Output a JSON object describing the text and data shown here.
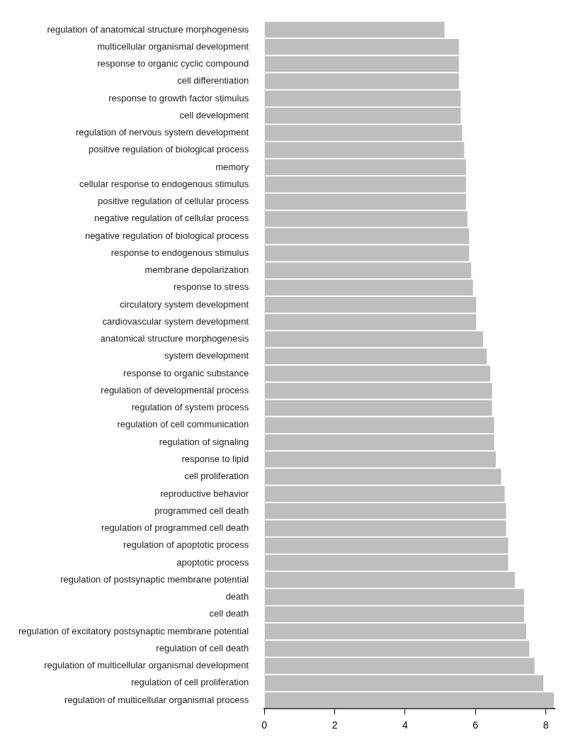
{
  "chart_data": {
    "type": "bar",
    "orientation": "horizontal",
    "color": "#bebebe",
    "categories": [
      "regulation of anatomical structure morphogenesis",
      "multicellular organismal development",
      "response to organic cyclic compound",
      "cell differentiation",
      "response to growth factor stimulus",
      "cell development",
      "regulation of nervous system development",
      "positive regulation of biological process",
      "memory",
      "cellular response to endogenous stimulus",
      "positive regulation of cellular process",
      "negative regulation of cellular process",
      "negative regulation of biological process",
      "response to endogenous stimulus",
      "membrane depolarization",
      "response to stress",
      "circulatory system development",
      "cardiovascular system development",
      "anatomical structure morphogenesis",
      "system development",
      "response to organic substance",
      "regulation of developmental process",
      "regulation of system process",
      "regulation of cell communication",
      "regulation of signaling",
      "response to lipid",
      "cell proliferation",
      "reproductive behavior",
      "programmed cell death",
      "regulation of programmed cell death",
      "regulation of apoptotic process",
      "apoptotic process",
      "regulation of postsynaptic membrane potential",
      "death",
      "cell death",
      "regulation of excitatory postsynaptic membrane potential",
      "regulation of cell death",
      "regulation of multicellular organismal development",
      "regulation of cell proliferation",
      "regulation of multicellular organismal process"
    ],
    "values": [
      5.12,
      5.53,
      5.53,
      5.53,
      5.58,
      5.58,
      5.62,
      5.68,
      5.73,
      5.73,
      5.73,
      5.77,
      5.82,
      5.82,
      5.88,
      5.93,
      6.02,
      6.02,
      6.22,
      6.32,
      6.42,
      6.47,
      6.47,
      6.53,
      6.53,
      6.58,
      6.73,
      6.83,
      6.87,
      6.87,
      6.93,
      6.93,
      7.12,
      7.38,
      7.38,
      7.44,
      7.53,
      7.68,
      7.93,
      8.23
    ],
    "xlim": [
      0,
      8.25
    ],
    "xticks": [
      0,
      2,
      4,
      6,
      8
    ],
    "grid": false,
    "legend": false
  }
}
